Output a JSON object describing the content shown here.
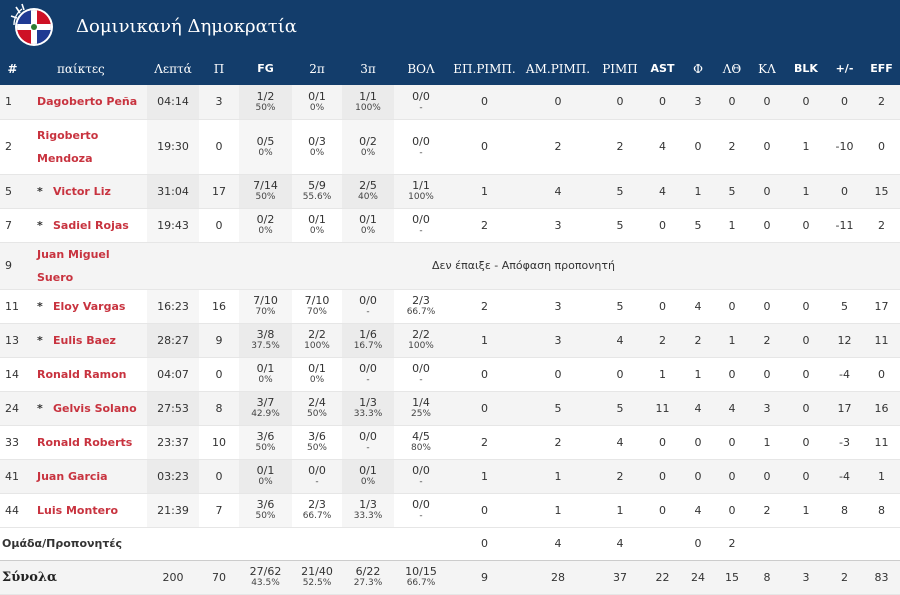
{
  "team": {
    "name": "Δομινικανή Δημοκρατία",
    "colors": {
      "header": "#133d6b",
      "name_red": "#c8333f",
      "flag_blue": "#1f3a93",
      "flag_red": "#ce1126"
    }
  },
  "columns": [
    "#",
    "παίκτες",
    "Λεπτά",
    "Π",
    "FG",
    "2π",
    "3π",
    "ΒΟΛ",
    "ΕΠ.ΡΙΜΠ.",
    "ΑΜ.ΡΙΜΠ.",
    "ΡΙΜΠ",
    "AST",
    "Φ",
    "ΛΘ",
    "ΚΛ",
    "BLK",
    "+/-",
    "EFF"
  ],
  "players": [
    {
      "no": "1",
      "name": "Dagoberto Peña",
      "starter": "",
      "min": "04:14",
      "pts": "3",
      "fg": "1/2",
      "fg_pct": "50%",
      "p2": "0/1",
      "p2_pct": "0%",
      "p3": "1/1",
      "p3_pct": "100%",
      "ft": "0/0",
      "ft_pct": "-",
      "oreb": "0",
      "dreb": "0",
      "reb": "0",
      "ast": "0",
      "fo": "3",
      "to": "0",
      "st": "0",
      "blk": "0",
      "pm": "0",
      "eff": "2"
    },
    {
      "no": "2",
      "name": "Rigoberto Mendoza",
      "starter": "",
      "min": "19:30",
      "pts": "0",
      "fg": "0/5",
      "fg_pct": "0%",
      "p2": "0/3",
      "p2_pct": "0%",
      "p3": "0/2",
      "p3_pct": "0%",
      "ft": "0/0",
      "ft_pct": "-",
      "oreb": "0",
      "dreb": "2",
      "reb": "2",
      "ast": "4",
      "fo": "0",
      "to": "2",
      "st": "0",
      "blk": "1",
      "pm": "-10",
      "eff": "0"
    },
    {
      "no": "5",
      "name": "Victor Liz",
      "starter": "*",
      "min": "31:04",
      "pts": "17",
      "fg": "7/14",
      "fg_pct": "50%",
      "p2": "5/9",
      "p2_pct": "55.6%",
      "p3": "2/5",
      "p3_pct": "40%",
      "ft": "1/1",
      "ft_pct": "100%",
      "oreb": "1",
      "dreb": "4",
      "reb": "5",
      "ast": "4",
      "fo": "1",
      "to": "5",
      "st": "0",
      "blk": "1",
      "pm": "0",
      "eff": "15"
    },
    {
      "no": "7",
      "name": "Sadiel Rojas",
      "starter": "*",
      "min": "19:43",
      "pts": "0",
      "fg": "0/2",
      "fg_pct": "0%",
      "p2": "0/1",
      "p2_pct": "0%",
      "p3": "0/1",
      "p3_pct": "0%",
      "ft": "0/0",
      "ft_pct": "-",
      "oreb": "2",
      "dreb": "3",
      "reb": "5",
      "ast": "0",
      "fo": "5",
      "to": "1",
      "st": "0",
      "blk": "0",
      "pm": "-11",
      "eff": "2"
    },
    {
      "no": "9",
      "name": "Juan Miguel Suero",
      "starter": "",
      "dnp": "Δεν έπαιξε - Απόφαση προπονητή"
    },
    {
      "no": "11",
      "name": "Eloy Vargas",
      "starter": "*",
      "min": "16:23",
      "pts": "16",
      "fg": "7/10",
      "fg_pct": "70%",
      "p2": "7/10",
      "p2_pct": "70%",
      "p3": "0/0",
      "p3_pct": "-",
      "ft": "2/3",
      "ft_pct": "66.7%",
      "oreb": "2",
      "dreb": "3",
      "reb": "5",
      "ast": "0",
      "fo": "4",
      "to": "0",
      "st": "0",
      "blk": "0",
      "pm": "5",
      "eff": "17"
    },
    {
      "no": "13",
      "name": "Eulis Baez",
      "starter": "*",
      "min": "28:27",
      "pts": "9",
      "fg": "3/8",
      "fg_pct": "37.5%",
      "p2": "2/2",
      "p2_pct": "100%",
      "p3": "1/6",
      "p3_pct": "16.7%",
      "ft": "2/2",
      "ft_pct": "100%",
      "oreb": "1",
      "dreb": "3",
      "reb": "4",
      "ast": "2",
      "fo": "2",
      "to": "1",
      "st": "2",
      "blk": "0",
      "pm": "12",
      "eff": "11"
    },
    {
      "no": "14",
      "name": "Ronald Ramon",
      "starter": "",
      "min": "04:07",
      "pts": "0",
      "fg": "0/1",
      "fg_pct": "0%",
      "p2": "0/1",
      "p2_pct": "0%",
      "p3": "0/0",
      "p3_pct": "-",
      "ft": "0/0",
      "ft_pct": "-",
      "oreb": "0",
      "dreb": "0",
      "reb": "0",
      "ast": "1",
      "fo": "1",
      "to": "0",
      "st": "0",
      "blk": "0",
      "pm": "-4",
      "eff": "0"
    },
    {
      "no": "24",
      "name": "Gelvis Solano",
      "starter": "*",
      "min": "27:53",
      "pts": "8",
      "fg": "3/7",
      "fg_pct": "42.9%",
      "p2": "2/4",
      "p2_pct": "50%",
      "p3": "1/3",
      "p3_pct": "33.3%",
      "ft": "1/4",
      "ft_pct": "25%",
      "oreb": "0",
      "dreb": "5",
      "reb": "5",
      "ast": "11",
      "fo": "4",
      "to": "4",
      "st": "3",
      "blk": "0",
      "pm": "17",
      "eff": "16"
    },
    {
      "no": "33",
      "name": "Ronald Roberts",
      "starter": "",
      "min": "23:37",
      "pts": "10",
      "fg": "3/6",
      "fg_pct": "50%",
      "p2": "3/6",
      "p2_pct": "50%",
      "p3": "0/0",
      "p3_pct": "-",
      "ft": "4/5",
      "ft_pct": "80%",
      "oreb": "2",
      "dreb": "2",
      "reb": "4",
      "ast": "0",
      "fo": "0",
      "to": "0",
      "st": "1",
      "blk": "0",
      "pm": "-3",
      "eff": "11"
    },
    {
      "no": "41",
      "name": "Juan Garcia",
      "starter": "",
      "min": "03:23",
      "pts": "0",
      "fg": "0/1",
      "fg_pct": "0%",
      "p2": "0/0",
      "p2_pct": "-",
      "p3": "0/1",
      "p3_pct": "0%",
      "ft": "0/0",
      "ft_pct": "-",
      "oreb": "1",
      "dreb": "1",
      "reb": "2",
      "ast": "0",
      "fo": "0",
      "to": "0",
      "st": "0",
      "blk": "0",
      "pm": "-4",
      "eff": "1"
    },
    {
      "no": "44",
      "name": "Luis Montero",
      "starter": "",
      "min": "21:39",
      "pts": "7",
      "fg": "3/6",
      "fg_pct": "50%",
      "p2": "2/3",
      "p2_pct": "66.7%",
      "p3": "1/3",
      "p3_pct": "33.3%",
      "ft": "0/0",
      "ft_pct": "-",
      "oreb": "0",
      "dreb": "1",
      "reb": "1",
      "ast": "0",
      "fo": "4",
      "to": "0",
      "st": "2",
      "blk": "1",
      "pm": "8",
      "eff": "8"
    }
  ],
  "team_row": {
    "label": "Ομάδα/Προπονητές",
    "oreb": "0",
    "dreb": "4",
    "reb": "4",
    "fo": "0",
    "to": "2"
  },
  "totals": {
    "label": "Σύνολα",
    "min": "200",
    "pts": "70",
    "fg": "27/62",
    "fg_pct": "43.5%",
    "p2": "21/40",
    "p2_pct": "52.5%",
    "p3": "6/22",
    "p3_pct": "27.3%",
    "ft": "10/15",
    "ft_pct": "66.7%",
    "oreb": "9",
    "dreb": "28",
    "reb": "37",
    "ast": "22",
    "fo": "24",
    "to": "15",
    "st": "8",
    "blk": "3",
    "pm": "2",
    "eff": "83"
  }
}
